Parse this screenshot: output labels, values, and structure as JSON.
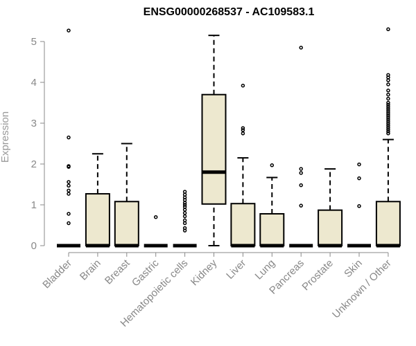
{
  "chart_data": {
    "type": "boxplot",
    "title": "ENSG00000268537 - AC109583.1",
    "xlabel": "",
    "ylabel": "Expression",
    "ylim": [
      0,
      5.3
    ],
    "yticks": [
      0,
      1,
      2,
      3,
      4,
      5
    ],
    "grid": false,
    "colors": {
      "box_fill": "#ede8cf",
      "stroke": "#000000",
      "axis": "#888888"
    },
    "categories": [
      "Bladder",
      "Brain",
      "Breast",
      "Gastric",
      "Hematopoietic cells",
      "Kidney",
      "Liver",
      "Lung",
      "Pancreas",
      "Prostate",
      "Skin",
      "Unknown / Other"
    ],
    "boxes": [
      {
        "category": "Bladder",
        "min": 0,
        "q1": 0,
        "median": 0,
        "q3": 0,
        "max": 0,
        "outliers": [
          0.55,
          0.78,
          1.27,
          1.35,
          1.47,
          1.56,
          1.93,
          1.95,
          2.65,
          5.27
        ]
      },
      {
        "category": "Brain",
        "min": 0,
        "q1": 0,
        "median": 0,
        "q3": 1.27,
        "max": 2.25,
        "outliers": []
      },
      {
        "category": "Breast",
        "min": 0,
        "q1": 0,
        "median": 0,
        "q3": 1.08,
        "max": 2.5,
        "outliers": []
      },
      {
        "category": "Gastric",
        "min": 0,
        "q1": 0,
        "median": 0,
        "q3": 0,
        "max": 0,
        "outliers": [
          0.7
        ]
      },
      {
        "category": "Hematopoietic cells",
        "min": 0,
        "q1": 0,
        "median": 0,
        "q3": 0,
        "max": 0,
        "outliers": [
          0.37,
          0.43,
          0.55,
          0.62,
          0.72,
          0.8,
          0.88,
          0.95,
          1.0,
          1.05,
          1.12,
          1.18,
          1.25,
          1.32
        ]
      },
      {
        "category": "Kidney",
        "min": 0,
        "q1": 1.02,
        "median": 1.8,
        "q3": 3.7,
        "max": 5.15,
        "outliers": []
      },
      {
        "category": "Liver",
        "min": 0,
        "q1": 0,
        "median": 0,
        "q3": 1.03,
        "max": 2.15,
        "outliers": [
          2.75,
          2.83,
          2.88,
          3.92
        ]
      },
      {
        "category": "Lung",
        "min": 0,
        "q1": 0,
        "median": 0,
        "q3": 0.78,
        "max": 1.67,
        "outliers": [
          1.97
        ]
      },
      {
        "category": "Pancreas",
        "min": 0,
        "q1": 0,
        "median": 0,
        "q3": 0,
        "max": 0,
        "outliers": [
          0.98,
          1.48,
          1.78,
          1.88,
          4.85
        ]
      },
      {
        "category": "Prostate",
        "min": 0,
        "q1": 0,
        "median": 0,
        "q3": 0.87,
        "max": 1.88,
        "outliers": []
      },
      {
        "category": "Skin",
        "min": 0,
        "q1": 0,
        "median": 0,
        "q3": 0,
        "max": 0,
        "outliers": [
          0.97,
          1.65,
          1.99
        ]
      },
      {
        "category": "Unknown / Other",
        "min": 0,
        "q1": 0,
        "median": 0,
        "q3": 1.08,
        "max": 2.6,
        "outliers": [
          2.75,
          2.8,
          2.85,
          2.9,
          2.95,
          3.0,
          3.05,
          3.1,
          3.15,
          3.2,
          3.25,
          3.3,
          3.35,
          3.4,
          3.45,
          3.5,
          3.6,
          3.7,
          3.8,
          3.95,
          4.05,
          4.12,
          4.18,
          5.3
        ]
      }
    ]
  }
}
